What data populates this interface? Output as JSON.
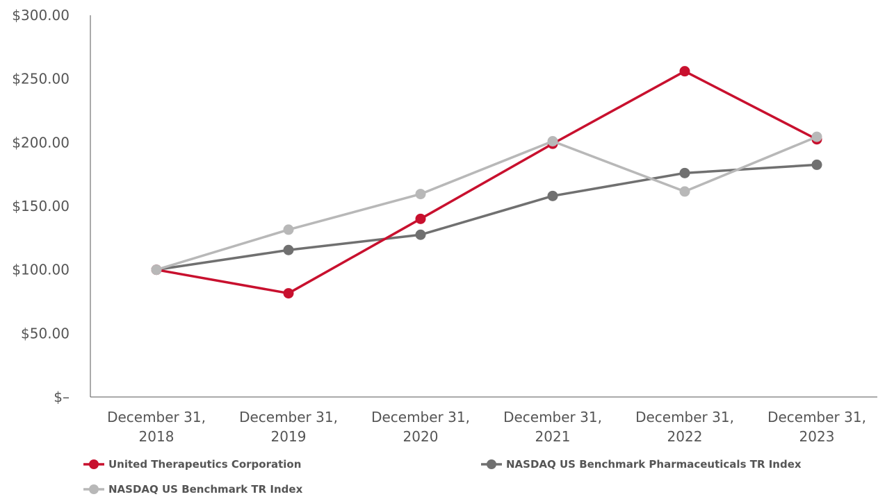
{
  "chart_data": {
    "type": "line",
    "categories": [
      [
        "December 31,",
        "2018"
      ],
      [
        "December 31,",
        "2019"
      ],
      [
        "December 31,",
        "2020"
      ],
      [
        "December 31,",
        "2021"
      ],
      [
        "December 31,",
        "2022"
      ],
      [
        "December 31,",
        "2023"
      ]
    ],
    "y_ticks": [
      "$–",
      "$50.00",
      "$100.00",
      "$150.00",
      "$200.00",
      "$250.00",
      "$300.00"
    ],
    "ylim": [
      0,
      300
    ],
    "grid": false,
    "legend_position": "bottom",
    "series": [
      {
        "name": "United Therapeutics Corporation",
        "color": "#c8102e",
        "values": [
          100.0,
          81.5,
          140.0,
          199.0,
          256.0,
          202.5
        ]
      },
      {
        "name": "NASDAQ US Benchmark Pharmaceuticals TR Index",
        "color": "#707070",
        "values": [
          100.0,
          115.5,
          127.5,
          158.0,
          176.0,
          182.5
        ]
      },
      {
        "name": "NASDAQ US Benchmark TR Index",
        "color": "#b8b8b8",
        "values": [
          100.0,
          131.5,
          159.5,
          201.0,
          161.5,
          204.5
        ]
      }
    ]
  }
}
